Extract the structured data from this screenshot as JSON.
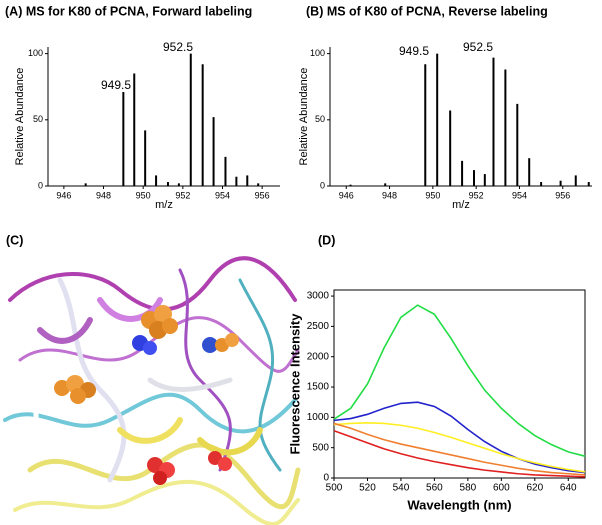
{
  "chart_data": [
    {
      "type": "stem",
      "title": "(A) MS for K80 of PCNA, Forward labeling",
      "x_label": "m/z",
      "y_label": "Relative Abundance",
      "x": [
        947.1,
        949.0,
        949.55,
        950.1,
        950.65,
        951.25,
        951.8,
        952.4,
        953.0,
        953.55,
        954.15,
        954.7,
        955.25,
        955.8
      ],
      "values": [
        2,
        71,
        85,
        42,
        8,
        3,
        2,
        100,
        92,
        52,
        22,
        7,
        8,
        2
      ],
      "color": "#000000",
      "annotations": [
        "949.5",
        "952.5"
      ],
      "xlim": [
        945.2,
        956.9
      ],
      "xticks": [
        946,
        948,
        950,
        952,
        954,
        956
      ],
      "ylim": [
        0,
        105
      ],
      "yticks": [
        0,
        50,
        100
      ]
    },
    {
      "type": "stem",
      "title": "(B) MS of K80 of PCNA, Reverse labeling",
      "x_label": "m/z",
      "y_label": "Relative Abundance",
      "x": [
        946.2,
        947.8,
        949.65,
        950.2,
        950.8,
        951.35,
        951.9,
        952.4,
        952.8,
        953.35,
        953.9,
        954.45,
        955.0,
        955.9,
        956.6,
        957.2
      ],
      "values": [
        1,
        2,
        92,
        100,
        57,
        19,
        12,
        9,
        97,
        88,
        62,
        21,
        3,
        4,
        8,
        3
      ],
      "color": "#000000",
      "annotations": [
        "949.5",
        "952.5"
      ],
      "xlim": [
        945.25,
        957.35
      ],
      "xticks": [
        946,
        948,
        950,
        952,
        954,
        956
      ],
      "ylim": [
        0,
        105
      ],
      "yticks": [
        0,
        50,
        100
      ]
    },
    {
      "type": "line",
      "title": "(D)",
      "x_label": "Wavelength (nm)",
      "y_label": "Fluorescence Intensity",
      "x": [
        500,
        510,
        520,
        530,
        540,
        550,
        560,
        570,
        580,
        590,
        600,
        610,
        620,
        630,
        640,
        650
      ],
      "series": [
        {
          "color": "#22dd44",
          "values": [
            970,
            1150,
            1550,
            2150,
            2650,
            2850,
            2700,
            2300,
            1850,
            1450,
            1150,
            900,
            700,
            550,
            430,
            360
          ]
        },
        {
          "color": "#2222cc",
          "values": [
            950,
            980,
            1050,
            1150,
            1230,
            1250,
            1180,
            1020,
            800,
            600,
            440,
            320,
            230,
            170,
            120,
            90
          ]
        },
        {
          "color": "#ffee22",
          "values": [
            880,
            900,
            910,
            900,
            870,
            820,
            750,
            670,
            580,
            490,
            400,
            320,
            250,
            190,
            140,
            100
          ]
        },
        {
          "color": "#f08030",
          "values": [
            900,
            820,
            720,
            630,
            560,
            500,
            440,
            380,
            320,
            260,
            210,
            160,
            120,
            90,
            70,
            50
          ]
        },
        {
          "color": "#e02020",
          "values": [
            780,
            680,
            580,
            480,
            400,
            330,
            270,
            220,
            170,
            130,
            100,
            70,
            50,
            40,
            30,
            20
          ]
        }
      ],
      "xlim": [
        500,
        650
      ],
      "xticks": [
        500,
        520,
        540,
        560,
        580,
        600,
        620,
        640
      ],
      "ylim": [
        0,
        3100
      ],
      "yticks": [
        0,
        500,
        1000,
        1500,
        2000,
        2500,
        3000
      ]
    }
  ],
  "image_panel": {
    "label": "(C)"
  }
}
